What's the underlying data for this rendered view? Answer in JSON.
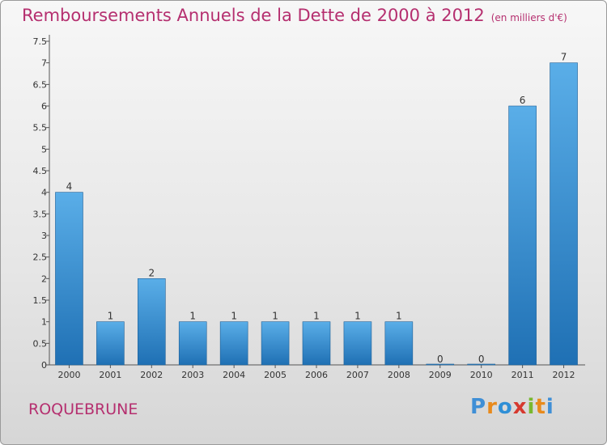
{
  "title": "Remboursements Annuels de la Dette de 2000 à 2012",
  "title_unit": "(en milliers d'€)",
  "city": "ROQUEBRUNE",
  "logo_text": "Proxiti",
  "colors": {
    "title": "#b52f6f",
    "bar_top": "#5aaee8",
    "bar_bottom": "#1f70b4",
    "logo": [
      "#3f8fd6",
      "#e88a1c",
      "#2f8fd6",
      "#d6392f",
      "#79b82f",
      "#e88a1c",
      "#3f8fd6"
    ]
  },
  "chart_data": {
    "type": "bar",
    "title": "Remboursements Annuels de la Dette de 2000 à 2012",
    "xlabel": "",
    "ylabel": "",
    "categories": [
      "2000",
      "2001",
      "2002",
      "2003",
      "2004",
      "2005",
      "2006",
      "2007",
      "2008",
      "2009",
      "2010",
      "2011",
      "2012"
    ],
    "values": [
      4,
      1,
      2,
      1,
      1,
      1,
      1,
      1,
      1,
      0,
      0,
      6,
      7
    ],
    "data_labels": [
      "4",
      "1",
      "2",
      "1",
      "1",
      "1",
      "1",
      "1",
      "1",
      "0",
      "0",
      "6",
      "7"
    ],
    "ylim": [
      0,
      7.5
    ],
    "yticks": [
      0,
      0.5,
      1,
      1.5,
      2,
      2.5,
      3,
      3.5,
      4,
      4.5,
      5,
      5.5,
      6,
      6.5,
      7,
      7.5
    ],
    "ytick_labels": [
      "0",
      "0.5",
      "1",
      "1.5",
      "2",
      "2.5",
      "3",
      "3.5",
      "4",
      "4.5",
      "5",
      "5.5",
      "6",
      "6.5",
      "7",
      "7.5"
    ],
    "grid": false,
    "legend": "none"
  }
}
